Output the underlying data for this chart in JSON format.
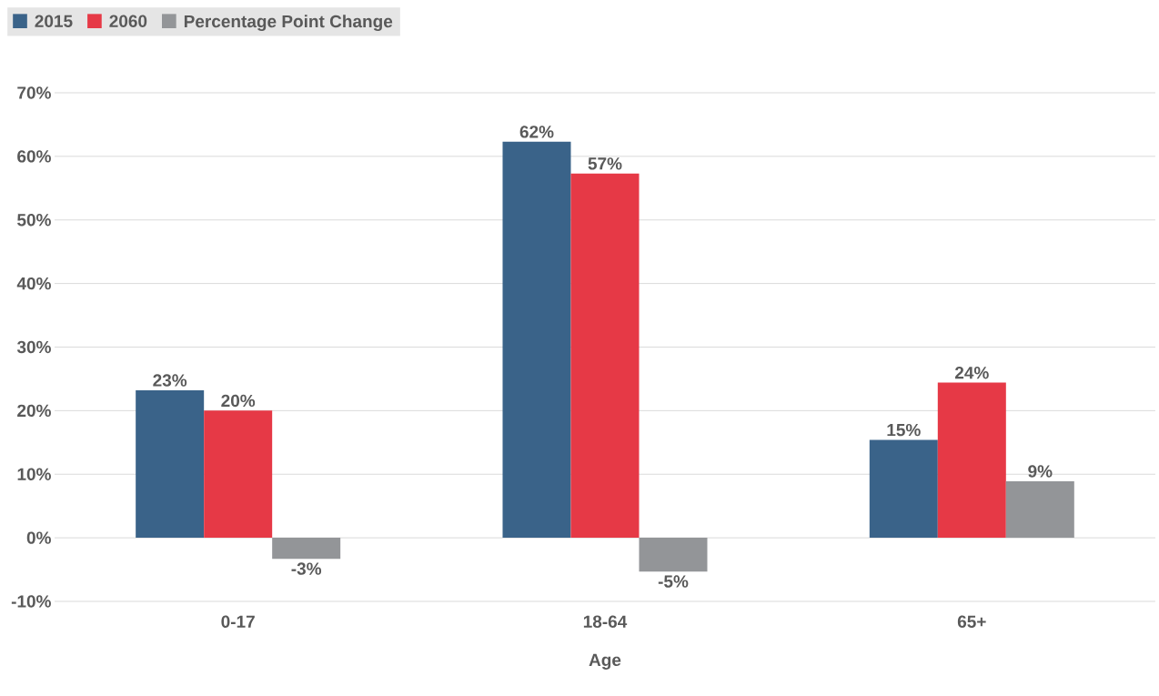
{
  "chart_data": {
    "type": "bar",
    "xlabel": "Age",
    "categories": [
      "0-17",
      "18-64",
      "65+"
    ],
    "series": [
      {
        "name": "2015",
        "color": "#3a6389",
        "values": [
          23.2,
          62.3,
          15.4
        ],
        "value_labels": [
          "23%",
          "62%",
          "15%"
        ]
      },
      {
        "name": "2060",
        "color": "#e63946",
        "values": [
          20.0,
          57.3,
          24.4
        ],
        "value_labels": [
          "20%",
          "57%",
          "24%"
        ]
      },
      {
        "name": "Percentage Point Change",
        "color": "#939598",
        "values": [
          -3.3,
          -5.3,
          8.9
        ],
        "value_labels": [
          "-3%",
          "-5%",
          "9%"
        ]
      }
    ],
    "ylim": [
      -10,
      70
    ],
    "yticks": [
      {
        "value": -10,
        "label": "-10%"
      },
      {
        "value": 0,
        "label": "0%"
      },
      {
        "value": 10,
        "label": "10%"
      },
      {
        "value": 20,
        "label": "20%"
      },
      {
        "value": 30,
        "label": "30%"
      },
      {
        "value": 40,
        "label": "40%"
      },
      {
        "value": 50,
        "label": "50%"
      },
      {
        "value": 60,
        "label": "60%"
      },
      {
        "value": 70,
        "label": "70%"
      }
    ],
    "grid": "y",
    "legend": "top left"
  }
}
